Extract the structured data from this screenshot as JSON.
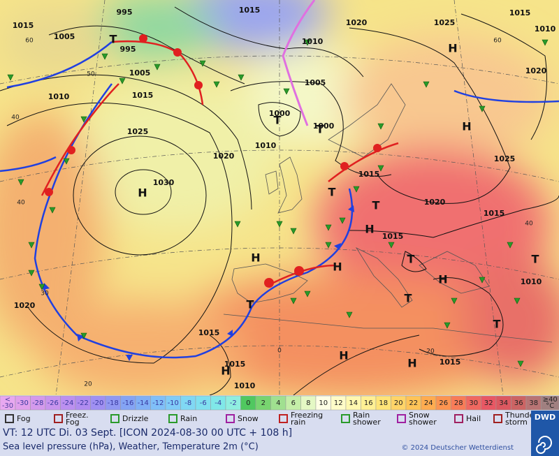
{
  "map": {
    "pressure_labels": [
      "995",
      "1015",
      "1015",
      "1005",
      "995",
      "1020",
      "1025",
      "1015",
      "1010",
      "1010",
      "1005",
      "1010",
      "1015",
      "1005",
      "1020",
      "1000",
      "1000",
      "1025",
      "1010",
      "1020",
      "1025",
      "1015",
      "1030",
      "1020",
      "1015",
      "1015",
      "1010",
      "1020",
      "1015",
      "1015",
      "1015",
      "1010"
    ],
    "centers": [
      "T",
      "H",
      "T",
      "T",
      "H",
      "H",
      "T",
      "T",
      "H",
      "H",
      "T",
      "H",
      "H",
      "T",
      "T",
      "T",
      "H",
      "H",
      "H",
      "T"
    ],
    "grid_labels": [
      "60",
      "50",
      "40",
      "30",
      "40",
      "20",
      "0",
      "20",
      "60",
      "40"
    ]
  },
  "color_scale": {
    "below_symbol": "<",
    "below_value": "-30",
    "below_color": "#e8a8f0",
    "labels": [
      "-30",
      "-28",
      "-26",
      "-24",
      "-22",
      "-20",
      "-18",
      "-16",
      "-14",
      "-12",
      "-10",
      "-8",
      "-6",
      "-4",
      "-2",
      "0",
      "2",
      "4",
      "6",
      "8",
      "10",
      "12",
      "14",
      "16",
      "18",
      "20",
      "22",
      "24",
      "26",
      "28",
      "30",
      "32",
      "34",
      "36",
      "38"
    ],
    "colors": [
      "#e0a0ec",
      "#d49aec",
      "#c894ee",
      "#bc90f0",
      "#b08cf0",
      "#a090f2",
      "#9098f2",
      "#84a4f4",
      "#80b0f6",
      "#80c0f8",
      "#80ccf8",
      "#80d8f4",
      "#80e0f0",
      "#80e8e8",
      "#90eee0",
      "#50c860",
      "#78d470",
      "#a0e090",
      "#c4eea8",
      "#e4f8c4",
      "#ffffe4",
      "#fffcc8",
      "#fff8b0",
      "#fff094",
      "#ffe478",
      "#ffd468",
      "#ffc458",
      "#ffac50",
      "#fc9450",
      "#f87c58",
      "#f06860",
      "#e85864",
      "#dc5860",
      "#cc6464",
      "#b87474"
    ],
    "above_symbol": "≥40",
    "unit": "°C"
  },
  "legend": [
    "Fog",
    "Freez. Fog",
    "Drizzle",
    "Rain",
    "Snow",
    "Freezing rain",
    "Rain shower",
    "Snow shower",
    "Hail",
    "Thunder storm"
  ],
  "footer": {
    "valid_time": "VT: 12 UTC Di.  03 Sept. [ICON 2024-08-30  00 UTC + 108 h]",
    "description": "Sea level pressure (hPa), Weather, Temperature 2m (°C)",
    "copyright": "© 2024 Deutscher Wetterdienst",
    "logo": "DWD"
  }
}
